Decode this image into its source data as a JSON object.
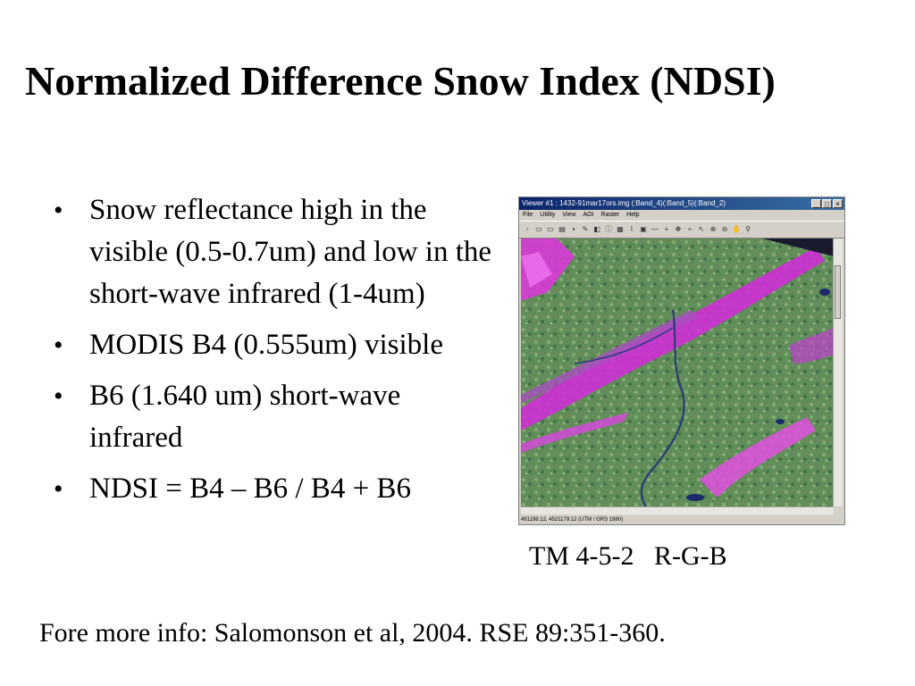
{
  "title": "Normalized Difference Snow Index (NDSI)",
  "bullets": [
    "Snow reflectance high in the visible (0.5-0.7um) and low in the short-wave infrared (1-4um)",
    "MODIS B4 (0.555um) visible",
    "B6 (1.640 um) short-wave infrared",
    "NDSI = B4 – B6 / B4 + B6"
  ],
  "bullet_symbol": "•",
  "viewer": {
    "window_title": "Viewer #1 : 1432-91mar17ors.img (:Band_4)(:Band_5)(:Band_2)",
    "menu": [
      "File",
      "Utility",
      "View",
      "AOI",
      "Raster",
      "Help"
    ],
    "status": "491198.12, 4521179.12   (UTM / GRS 1980)",
    "colors": {
      "vegetation": "#5b8a55",
      "snow": "#d020d8",
      "water": "#1a2a6a"
    }
  },
  "caption": "TM 4-5-2   R-G-B",
  "footer": "Fore more info: Salomonson et al, 2004. RSE 89:351-360."
}
